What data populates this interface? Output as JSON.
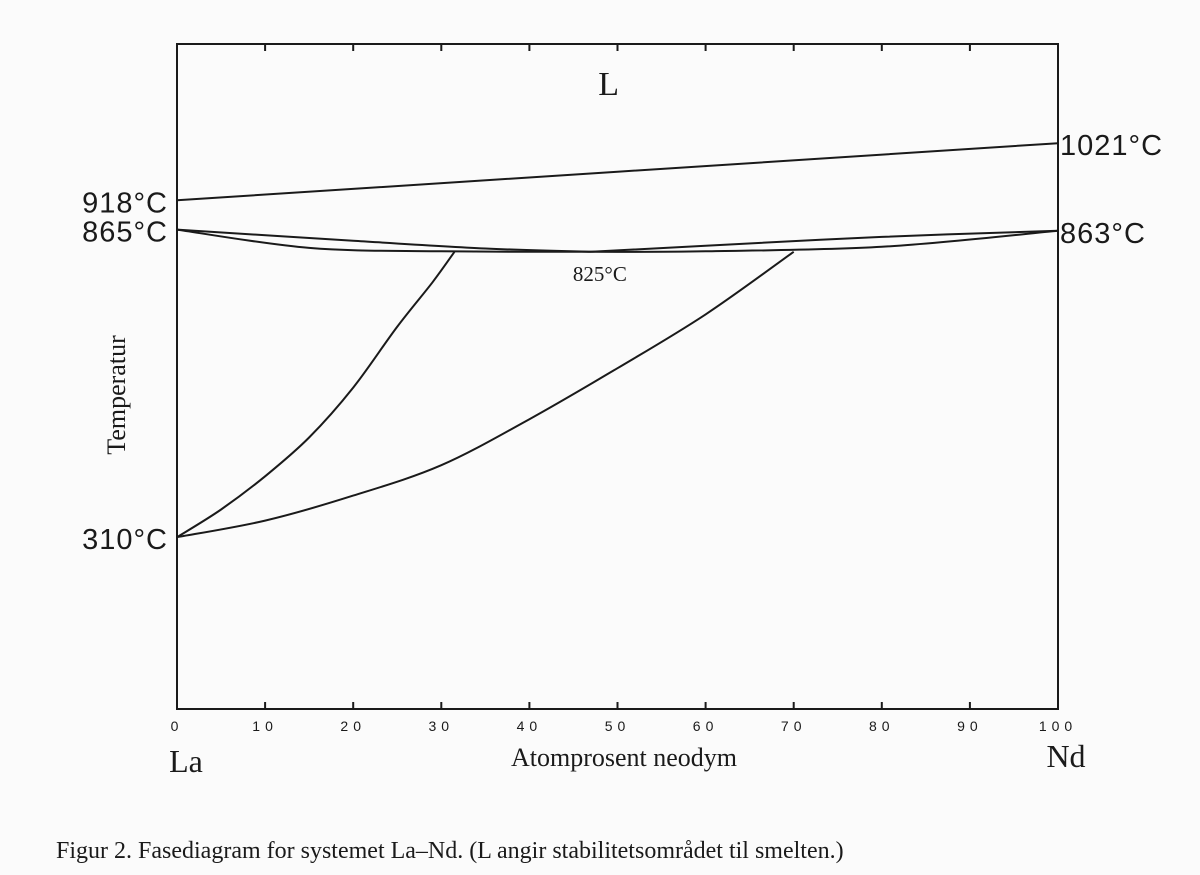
{
  "chart_data": {
    "type": "line",
    "title": "",
    "caption": "Figur 2.  Fasediagram for systemet La–Nd. (L angir stabilitetsområdet til smelten.)",
    "xlabel": "Atomprosent neodym",
    "ylabel": "Temperatur",
    "xlim": [
      0,
      100
    ],
    "x_ticks": [
      0,
      10,
      20,
      30,
      40,
      50,
      60,
      70,
      80,
      90,
      100
    ],
    "x_tick_labels": [
      "0",
      "10",
      "20",
      "30",
      "40",
      "50",
      "60",
      "70",
      "80",
      "90",
      "100"
    ],
    "x_end_labels": {
      "left": "La",
      "right": "Nd"
    },
    "ylim": [
      0,
      1200
    ],
    "grid": false,
    "region_labels": [
      {
        "text": "L",
        "x": 49,
        "y": 1130
      }
    ],
    "annotations": [
      {
        "text": "825°C",
        "x": 48,
        "y": 785
      }
    ],
    "temperature_labels": {
      "left": [
        {
          "text": "918°C",
          "y": 918
        },
        {
          "text": "865°C",
          "y": 865
        },
        {
          "text": "310°C",
          "y": 310
        }
      ],
      "right": [
        {
          "text": "1021°C",
          "y": 1021
        },
        {
          "text": "863°C",
          "y": 863
        }
      ]
    },
    "series": [
      {
        "x": [
          0,
          100
        ],
        "y": [
          918,
          1021
        ]
      },
      {
        "x": [
          0,
          20,
          35,
          47
        ],
        "y": [
          865,
          845,
          831,
          825
        ]
      },
      {
        "x": [
          0,
          15,
          30,
          47,
          60,
          80,
          100
        ],
        "y": [
          865,
          832,
          826,
          825,
          826,
          834,
          863
        ]
      },
      {
        "x": [
          47,
          60,
          80,
          100
        ],
        "y": [
          825,
          836,
          852,
          863
        ]
      },
      {
        "x": [
          31.5,
          29,
          25,
          20,
          15,
          10,
          5,
          0
        ],
        "y": [
          825,
          770,
          690,
          580,
          490,
          420,
          360,
          310
        ]
      },
      {
        "x": [
          70,
          60,
          50,
          40,
          30,
          20,
          10,
          0
        ],
        "y": [
          825,
          712,
          615,
          523,
          440,
          385,
          340,
          310
        ]
      }
    ]
  }
}
